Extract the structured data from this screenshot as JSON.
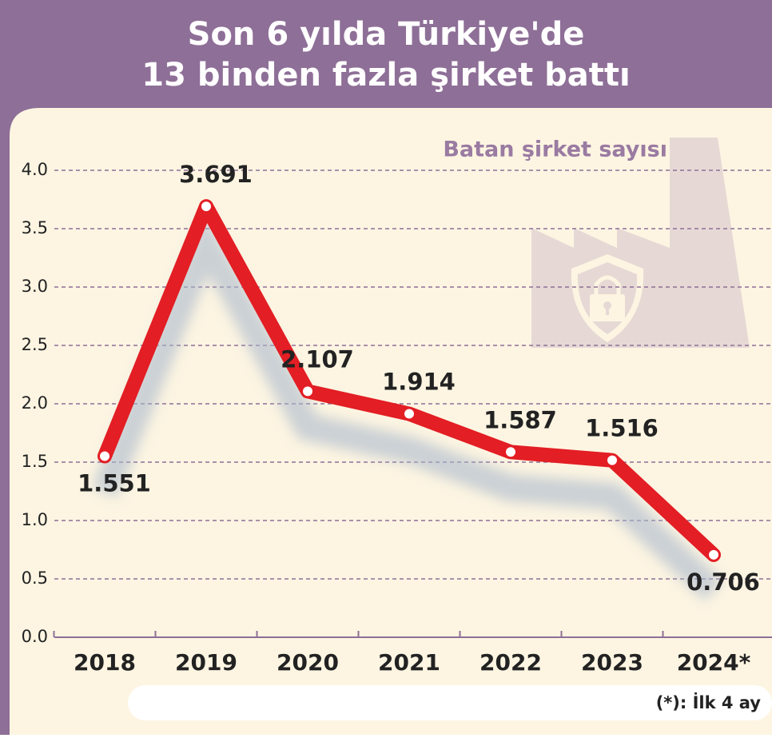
{
  "chart_data": {
    "type": "line",
    "title": [
      "Son 6 yılda Türkiye'de",
      "13 binden fazla şirket battı"
    ],
    "categories": [
      "2018",
      "2019",
      "2020",
      "2021",
      "2022",
      "2023",
      "2024*"
    ],
    "series": [
      {
        "name": "Batan şirket sayısı",
        "color": "#e31e24",
        "values": [
          1.551,
          3.691,
          2.107,
          1.914,
          1.587,
          1.516,
          0.706
        ]
      }
    ],
    "ylim": [
      0,
      4
    ],
    "yticks": [
      {
        "value": 0,
        "label": "0.0"
      },
      {
        "value": 0.5,
        "label": "0.5"
      },
      {
        "value": 1,
        "label": "1.0"
      },
      {
        "value": 1.5,
        "label": "1.5"
      },
      {
        "value": 2,
        "label": "2.0"
      },
      {
        "value": 2.5,
        "label": "2.5"
      },
      {
        "value": 3,
        "label": "3.0"
      },
      {
        "value": 3.5,
        "label": "3.5"
      },
      {
        "value": 4,
        "label": "4.0"
      }
    ],
    "grid": true,
    "footnote": "(*): İlk 4 ay"
  }
}
